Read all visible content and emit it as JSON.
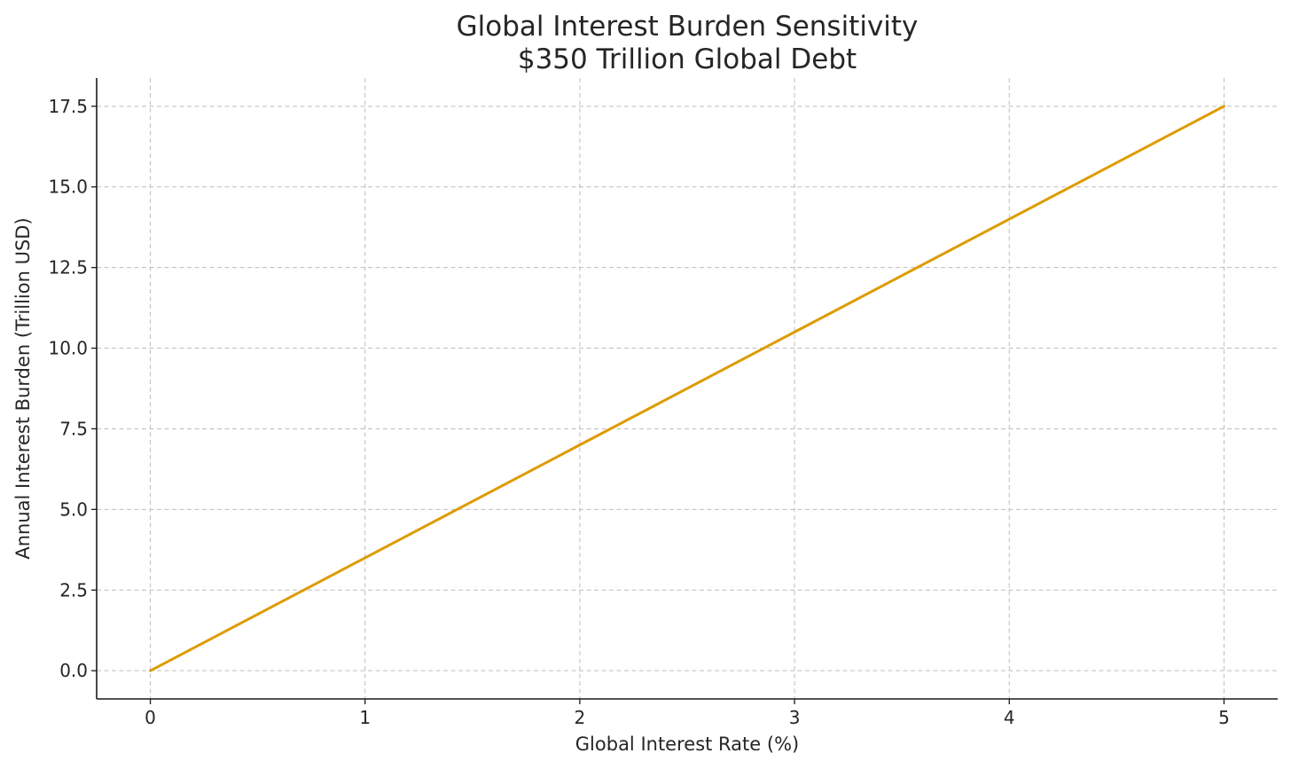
{
  "chart_data": {
    "type": "line",
    "title": "Global Interest Burden Sensitivity",
    "subtitle": "$350 Trillion Global Debt",
    "xlabel": "Global Interest Rate (%)",
    "ylabel": "Annual Interest Burden (Trillion USD)",
    "xlim": [
      -0.25,
      5.25
    ],
    "ylim": [
      -0.875,
      18.375
    ],
    "x_ticks": [
      0,
      1,
      2,
      3,
      4,
      5
    ],
    "x_tick_labels": [
      "0",
      "1",
      "2",
      "3",
      "4",
      "5"
    ],
    "y_ticks": [
      0,
      2.5,
      5,
      7.5,
      10,
      12.5,
      15,
      17.5
    ],
    "y_tick_labels": [
      "0.0",
      "2.5",
      "5.0",
      "7.5",
      "10.0",
      "12.5",
      "15.0",
      "17.5"
    ],
    "grid": true,
    "legend": "none",
    "series": [
      {
        "color": "#DE9B00",
        "x": [
          0,
          1,
          2,
          3,
          4,
          5
        ],
        "y": [
          0,
          3.5,
          7,
          10.5,
          14,
          17.5
        ]
      }
    ]
  }
}
